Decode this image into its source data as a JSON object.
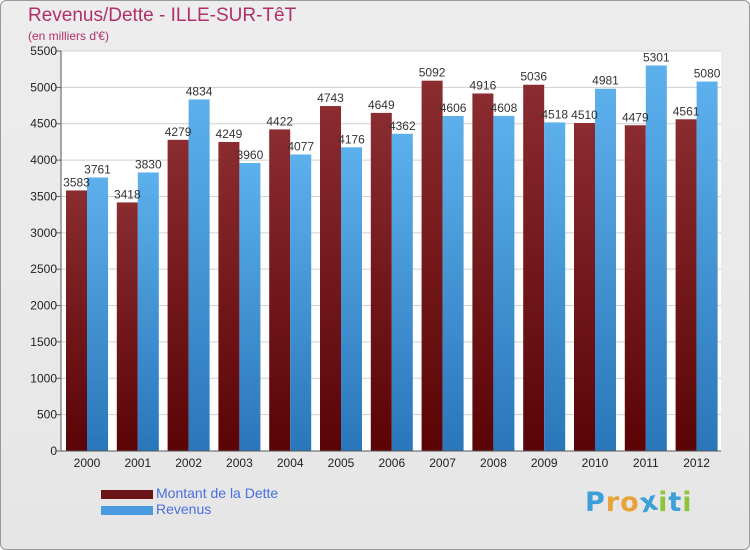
{
  "title": "Revenus/Dette - ILLE-SUR-TêT",
  "subtitle": "(en milliers d'€)",
  "brand": {
    "letters": [
      "P",
      "r",
      "o",
      "x",
      "i",
      "t",
      "i"
    ],
    "letter_colors": [
      "#3c9fd8",
      "#e8a23a",
      "#e8a23a",
      "#3c9fd8",
      "#8fc43d",
      "#3c9fd8",
      "#8fc43d"
    ]
  },
  "chart_data": {
    "type": "bar",
    "categories": [
      "2000",
      "2001",
      "2002",
      "2003",
      "2004",
      "2005",
      "2006",
      "2007",
      "2008",
      "2009",
      "2010",
      "2011",
      "2012"
    ],
    "series": [
      {
        "name": "Montant de la Dette",
        "color": "#7a1e22",
        "values": [
          3583,
          3418,
          4279,
          4249,
          4422,
          4743,
          4649,
          5092,
          4916,
          5036,
          4510,
          4479,
          4561
        ],
        "labels": [
          "3583",
          "3418",
          "4279",
          "4249",
          "4422",
          "4743",
          "4649",
          "5092",
          "4916",
          "5036",
          "4510",
          "4479",
          "4561"
        ]
      },
      {
        "name": "Revenus",
        "color": "#3d8fd6",
        "values": [
          3761,
          3830,
          4834,
          3960,
          4077,
          4176,
          4362,
          4606,
          4608,
          4518,
          4981,
          5301,
          5080
        ],
        "labels": [
          "3761",
          "3830",
          "4834",
          "3960",
          "4077",
          "4176",
          "4362",
          "4606",
          "4608",
          "4518",
          "4981",
          "5301",
          "5080"
        ]
      }
    ],
    "ylim": [
      0,
      5500
    ],
    "yticks": [
      0,
      500,
      1000,
      1500,
      2000,
      2500,
      3000,
      3500,
      4000,
      4500,
      5000,
      5500
    ],
    "ytick_labels": [
      "0",
      "500",
      "1000",
      "1500",
      "2000",
      "2500",
      "3000",
      "3500",
      "4000",
      "4500",
      "5000",
      "5500"
    ],
    "grid": true,
    "legend_position": "bottom-left"
  }
}
